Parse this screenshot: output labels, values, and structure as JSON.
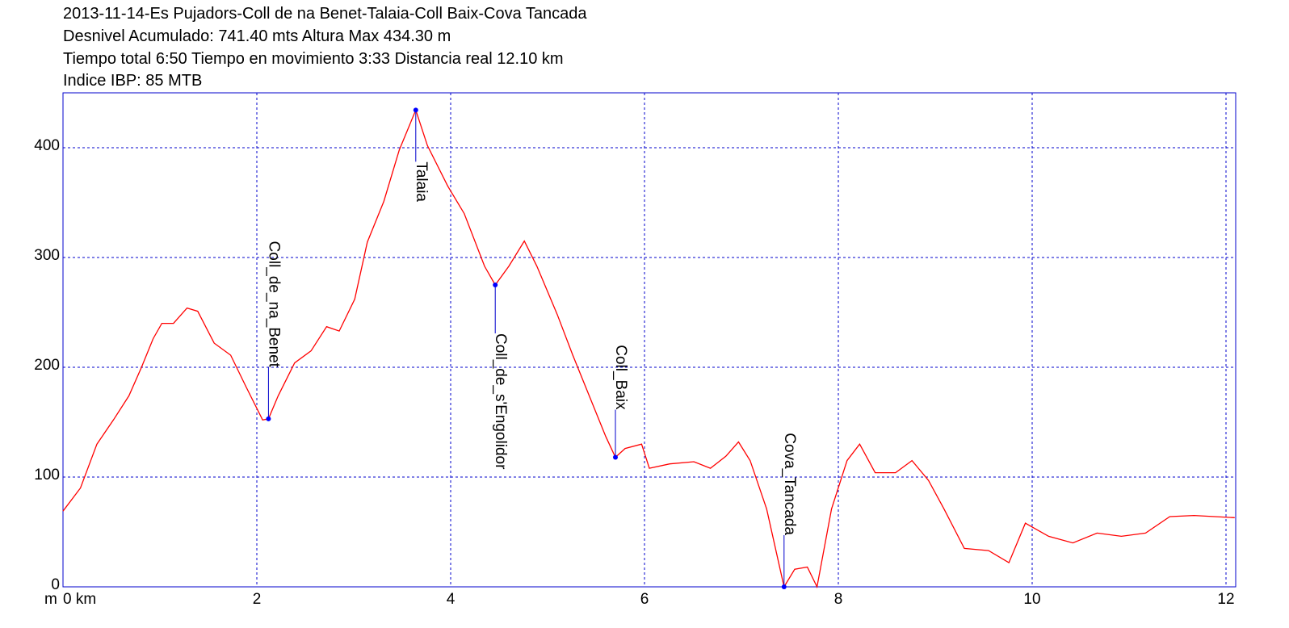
{
  "chart_data": {
    "type": "line",
    "title": "2013-11-14-Es Pujadors-Coll de na Benet-Talaia-Coll Baix-Cova Tancada",
    "subtitle": [
      "Desnivel Acumulado: 741.40 mts  Altura Max 434.30 m",
      "Tiempo total 6:50 Tiempo en movimiento 3:33 Distancia real 12.10 km",
      "Indice IBP: 85 MTB"
    ],
    "y_label": "m",
    "color": "#ff0000",
    "grid": true,
    "xlim": [
      0,
      12.1
    ],
    "ylim": [
      0,
      450
    ],
    "xticks": [
      {
        "value": 0,
        "label": "0 km"
      },
      2,
      4,
      6,
      8,
      10,
      12
    ],
    "yticks": [
      0,
      100,
      200,
      300,
      400
    ],
    "x": [
      0,
      0.18,
      0.35,
      0.52,
      0.68,
      0.81,
      0.93,
      1.02,
      1.14,
      1.28,
      1.39,
      1.56,
      1.73,
      1.89,
      2.06,
      2.12,
      2.22,
      2.39,
      2.56,
      2.72,
      2.85,
      3.01,
      3.14,
      3.31,
      3.47,
      3.64,
      3.76,
      3.97,
      4.14,
      4.35,
      4.46,
      4.6,
      4.76,
      4.89,
      5.1,
      5.26,
      5.43,
      5.6,
      5.7,
      5.8,
      5.97,
      6.05,
      6.26,
      6.51,
      6.68,
      6.84,
      6.97,
      7.09,
      7.26,
      7.44,
      7.55,
      7.68,
      7.78,
      7.93,
      8.09,
      8.22,
      8.38,
      8.59,
      8.76,
      8.93,
      9.09,
      9.3,
      9.55,
      9.76,
      9.93,
      10.17,
      10.42,
      10.67,
      10.92,
      11.17,
      11.42,
      11.67,
      12.09
    ],
    "values": [
      69,
      90,
      130,
      152,
      174,
      200,
      226,
      240,
      240,
      254,
      251,
      222,
      211,
      182,
      152,
      153,
      174,
      204,
      215,
      237,
      233,
      262,
      314,
      351,
      398,
      434.3,
      402,
      365,
      340,
      292,
      275,
      292,
      315,
      292,
      248,
      211,
      174,
      137,
      118,
      126,
      130,
      108,
      112,
      114,
      108,
      119,
      132,
      115,
      71,
      0,
      16,
      18,
      0,
      71,
      115,
      130,
      104,
      104,
      115,
      97,
      71,
      35,
      33,
      22,
      58,
      46,
      40,
      49,
      46,
      49,
      64,
      65,
      63
    ],
    "waypoints": [
      {
        "name": "Coll_de_na_Benet",
        "x": 2.12,
        "y": 153
      },
      {
        "name": "Talaia",
        "x": 3.64,
        "y": 434.3
      },
      {
        "name": "Coll_de_s'Engolidor",
        "x": 4.46,
        "y": 275
      },
      {
        "name": "Coll_Baix",
        "x": 5.7,
        "y": 118
      },
      {
        "name": "Cova_Tancada",
        "x": 7.44,
        "y": 0
      }
    ]
  }
}
